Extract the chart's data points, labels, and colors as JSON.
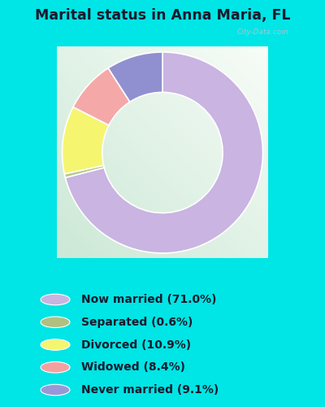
{
  "title": "Marital status in Anna Maria, FL",
  "categories": [
    "Now married",
    "Separated",
    "Divorced",
    "Widowed",
    "Never married"
  ],
  "values": [
    71.0,
    0.6,
    10.9,
    8.4,
    9.1
  ],
  "colors": [
    "#c9b4e2",
    "#b8c98a",
    "#f5f570",
    "#f5a8a8",
    "#9090d0"
  ],
  "legend_colors": [
    "#c8b4e0",
    "#b0c080",
    "#f5f570",
    "#f5a0a0",
    "#9898d8"
  ],
  "legend_labels": [
    "Now married (71.0%)",
    "Separated (0.6%)",
    "Divorced (10.9%)",
    "Widowed (8.4%)",
    "Never married (9.1%)"
  ],
  "bg_outer": "#00e5e5",
  "watermark": "City-Data.com",
  "start_angle": 90,
  "donut_width": 0.38
}
